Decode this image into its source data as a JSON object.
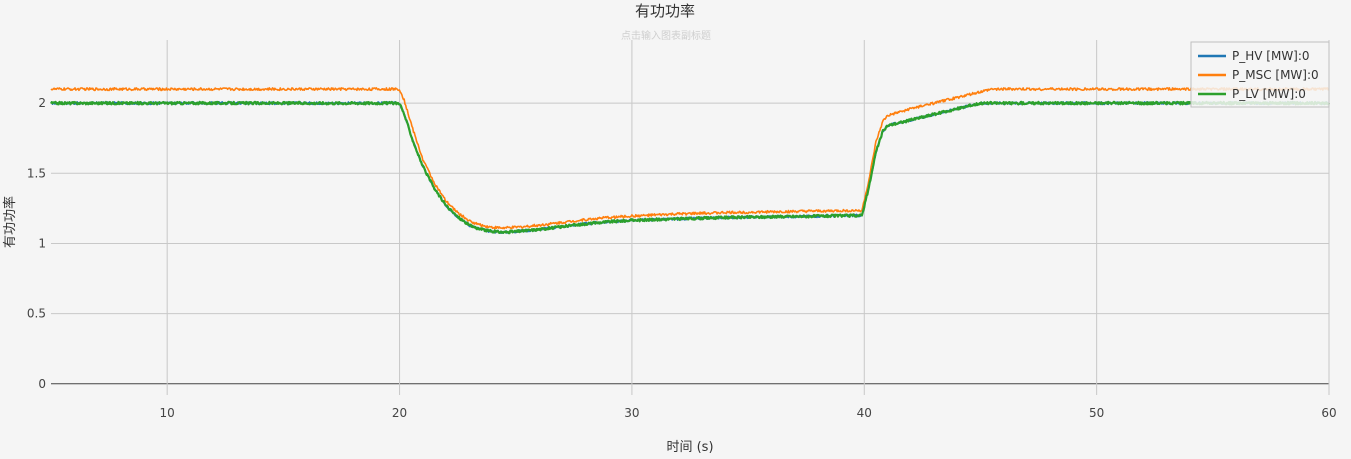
{
  "chart_data": {
    "type": "line",
    "title": "有功功率",
    "subtitle": "点击输入图表副标题",
    "xlabel": "时间 (s)",
    "ylabel": "有功功率",
    "xlim": [
      5,
      60
    ],
    "ylim": [
      -0.08,
      2.45
    ],
    "xticks": [
      10,
      20,
      30,
      40,
      50,
      60
    ],
    "yticks": [
      0,
      0.5,
      1,
      1.5,
      2
    ],
    "ytick_labels": [
      "0",
      "0.5",
      "1",
      "1.5",
      "2"
    ],
    "grid": true,
    "legend_position": "top-right",
    "series": [
      {
        "name": "P_HV [MW]:0",
        "color": "#1f77b4",
        "x": [
          5,
          10,
          15,
          20,
          20.2,
          20.6,
          21,
          21.5,
          22,
          22.5,
          23,
          23.5,
          24,
          24.5,
          25,
          26,
          27,
          28,
          29,
          30,
          32,
          34,
          36,
          38,
          39.9,
          40.2,
          40.5,
          40.8,
          41,
          42,
          43,
          44,
          45,
          45.5,
          50,
          55,
          60
        ],
        "y": [
          2,
          2,
          2,
          2,
          1.92,
          1.72,
          1.55,
          1.39,
          1.27,
          1.19,
          1.13,
          1.1,
          1.085,
          1.08,
          1.085,
          1.1,
          1.12,
          1.14,
          1.155,
          1.165,
          1.175,
          1.185,
          1.19,
          1.195,
          1.2,
          1.4,
          1.65,
          1.8,
          1.84,
          1.88,
          1.92,
          1.96,
          2.0,
          2.0,
          2.0,
          2.0,
          2.0
        ]
      },
      {
        "name": "P_MSC [MW]:0",
        "color": "#ff7f0e",
        "x": [
          5,
          10,
          15,
          20,
          20.2,
          20.6,
          21,
          21.5,
          22,
          22.5,
          23,
          23.5,
          24,
          24.5,
          25,
          26,
          27,
          28,
          29,
          30,
          32,
          34,
          36,
          38,
          39.9,
          40.2,
          40.5,
          40.8,
          41,
          42,
          43,
          44,
          45,
          45.5,
          50,
          55,
          60
        ],
        "y": [
          2.1,
          2.1,
          2.1,
          2.1,
          2.02,
          1.8,
          1.6,
          1.43,
          1.3,
          1.22,
          1.16,
          1.13,
          1.115,
          1.11,
          1.115,
          1.13,
          1.15,
          1.17,
          1.185,
          1.195,
          1.21,
          1.22,
          1.225,
          1.23,
          1.235,
          1.45,
          1.72,
          1.87,
          1.91,
          1.96,
          2.0,
          2.04,
          2.08,
          2.1,
          2.1,
          2.1,
          2.1
        ]
      },
      {
        "name": "P_LV [MW]:0",
        "color": "#2ca02c",
        "x": [
          5,
          10,
          15,
          20,
          20.2,
          20.6,
          21,
          21.5,
          22,
          22.5,
          23,
          23.5,
          24,
          24.5,
          25,
          26,
          27,
          28,
          29,
          30,
          32,
          34,
          36,
          38,
          39.9,
          40.2,
          40.5,
          40.8,
          41,
          42,
          43,
          44,
          45,
          45.5,
          50,
          55,
          60
        ],
        "y": [
          2,
          2,
          2,
          2,
          1.92,
          1.72,
          1.55,
          1.39,
          1.27,
          1.19,
          1.13,
          1.1,
          1.085,
          1.08,
          1.085,
          1.1,
          1.12,
          1.14,
          1.155,
          1.165,
          1.175,
          1.185,
          1.19,
          1.195,
          1.2,
          1.4,
          1.65,
          1.8,
          1.84,
          1.88,
          1.92,
          1.96,
          2.0,
          2.0,
          2.0,
          2.0,
          2.0
        ]
      }
    ]
  }
}
